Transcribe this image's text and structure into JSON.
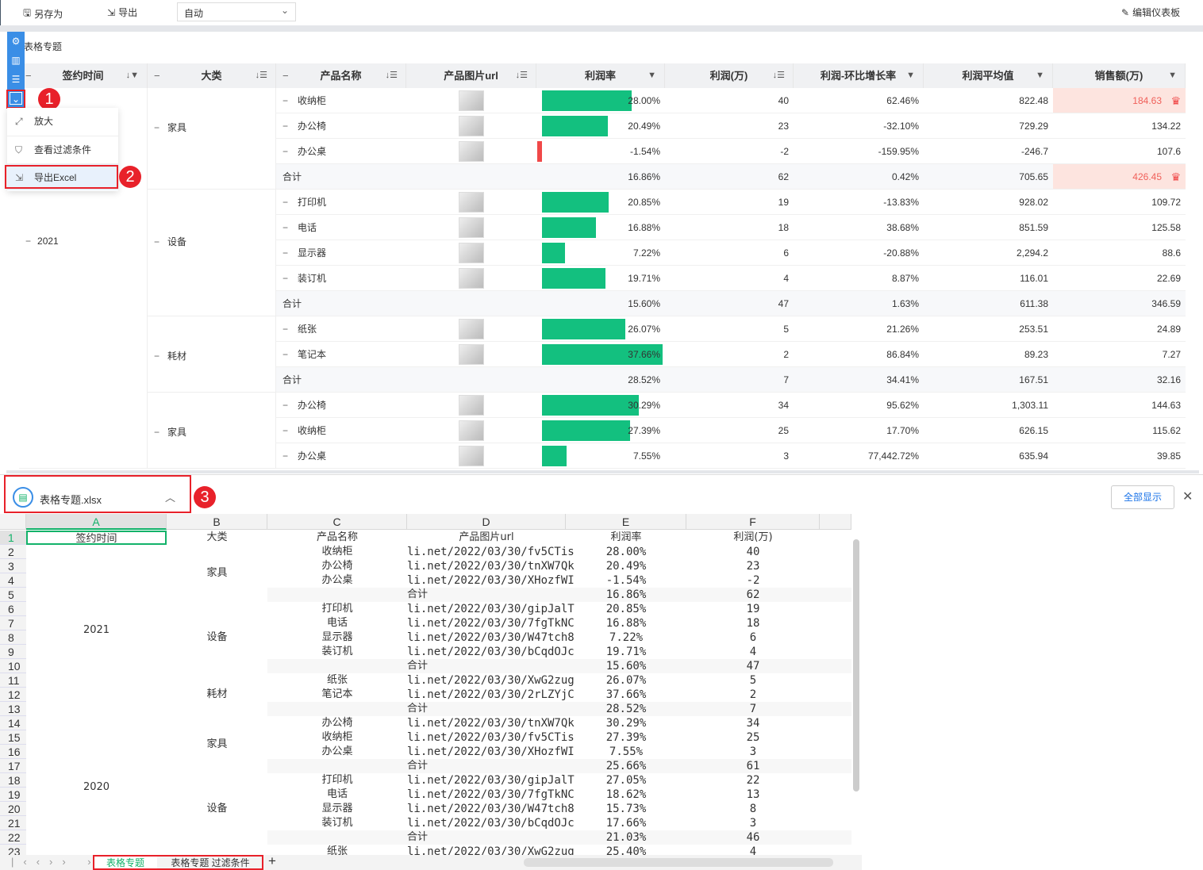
{
  "toolbar": {
    "save_as": "另存为",
    "export": "导出",
    "mode": "自动",
    "edit": "编辑仪表板"
  },
  "panel": {
    "title": "表格专题"
  },
  "menu": {
    "items": [
      "放大",
      "查看过滤条件",
      "导出Excel"
    ]
  },
  "badges": [
    "1",
    "2",
    "3"
  ],
  "columns": [
    "签约时间",
    "大类",
    "产品名称",
    "产品图片url",
    "利润率",
    "利润(万)",
    "利润-环比增长率",
    "利润平均值",
    "销售额(万)"
  ],
  "year": "2021",
  "rows": [
    {
      "cat": "家具",
      "name": "收纳柜",
      "rate": "28.00%",
      "rv": 28.0,
      "profit": "40",
      "mom": "62.46%",
      "avg": "822.48",
      "sales": "184.63",
      "crown": true
    },
    {
      "name": "办公椅",
      "rate": "20.49%",
      "rv": 20.49,
      "profit": "23",
      "mom": "-32.10%",
      "avg": "729.29",
      "sales": "134.22"
    },
    {
      "name": "办公桌",
      "rate": "-1.54%",
      "rv": -1.54,
      "profit": "-2",
      "mom": "-159.95%",
      "avg": "-246.7",
      "sales": "107.6"
    },
    {
      "total": "合计",
      "rate": "16.86%",
      "profit": "62",
      "mom": "0.42%",
      "avg": "705.65",
      "sales": "426.45",
      "crown": true
    },
    {
      "cat": "设备",
      "name": "打印机",
      "rate": "20.85%",
      "rv": 20.85,
      "profit": "19",
      "mom": "-13.83%",
      "avg": "928.02",
      "sales": "109.72"
    },
    {
      "name": "电话",
      "rate": "16.88%",
      "rv": 16.88,
      "profit": "18",
      "mom": "38.68%",
      "avg": "851.59",
      "sales": "125.58"
    },
    {
      "name": "显示器",
      "rate": "7.22%",
      "rv": 7.22,
      "profit": "6",
      "mom": "-20.88%",
      "avg": "2,294.2",
      "sales": "88.6"
    },
    {
      "name": "装订机",
      "rate": "19.71%",
      "rv": 19.71,
      "profit": "4",
      "mom": "8.87%",
      "avg": "116.01",
      "sales": "22.69"
    },
    {
      "total": "合计",
      "rate": "15.60%",
      "profit": "47",
      "mom": "1.63%",
      "avg": "611.38",
      "sales": "346.59"
    },
    {
      "cat": "耗材",
      "name": "纸张",
      "rate": "26.07%",
      "rv": 26.07,
      "profit": "5",
      "mom": "21.26%",
      "avg": "253.51",
      "sales": "24.89"
    },
    {
      "name": "笔记本",
      "rate": "37.66%",
      "rv": 37.66,
      "profit": "2",
      "mom": "86.84%",
      "avg": "89.23",
      "sales": "7.27"
    },
    {
      "total": "合计",
      "rate": "28.52%",
      "profit": "7",
      "mom": "34.41%",
      "avg": "167.51",
      "sales": "32.16"
    },
    {
      "cat": "家具",
      "name": "办公椅",
      "rate": "30.29%",
      "rv": 30.29,
      "profit": "34",
      "mom": "95.62%",
      "avg": "1,303.11",
      "sales": "144.63"
    },
    {
      "name": "收纳柜",
      "rate": "27.39%",
      "rv": 27.39,
      "profit": "25",
      "mom": "17.70%",
      "avg": "626.15",
      "sales": "115.62"
    },
    {
      "name": "办公桌",
      "rate": "7.55%",
      "rv": 7.55,
      "profit": "3",
      "mom": "77,442.72%",
      "avg": "635.94",
      "sales": "39.85"
    }
  ],
  "download": {
    "file": "表格专题.xlsx",
    "show_all": "全部显示"
  },
  "sheet": {
    "col_letters": [
      "A",
      "B",
      "C",
      "D",
      "E",
      "F"
    ],
    "header": [
      "签约时间",
      "大类",
      "产品名称",
      "产品图片url",
      "利润率",
      "利润(万)"
    ],
    "merged_a": [
      {
        "text": "2021",
        "from": 2,
        "to": 13
      },
      {
        "text": "2020",
        "from": 14,
        "to": 23
      }
    ],
    "merged_b": [
      {
        "text": "家具",
        "from": 2,
        "to": 5
      },
      {
        "text": "设备",
        "from": 6,
        "to": 10
      },
      {
        "text": "耗材",
        "from": 11,
        "to": 13
      },
      {
        "text": "家具",
        "from": 14,
        "to": 17
      },
      {
        "text": "设备",
        "from": 18,
        "to": 22
      }
    ],
    "rows": [
      [
        "收纳柜",
        "li.net/2022/03/30/fv5CTis",
        "28.00%",
        "40"
      ],
      [
        "办公椅",
        "li.net/2022/03/30/tnXW7Qk",
        "20.49%",
        "23"
      ],
      [
        "办公桌",
        "li.net/2022/03/30/XHozfWI",
        "-1.54%",
        "-2"
      ],
      [
        "",
        "合计",
        "16.86%",
        "62"
      ],
      [
        "打印机",
        "li.net/2022/03/30/gipJalT",
        "20.85%",
        "19"
      ],
      [
        "电话",
        "li.net/2022/03/30/7fgTkNC",
        "16.88%",
        "18"
      ],
      [
        "显示器",
        "li.net/2022/03/30/W47tch8",
        "7.22%",
        "6"
      ],
      [
        "装订机",
        "li.net/2022/03/30/bCqdOJc",
        "19.71%",
        "4"
      ],
      [
        "",
        "合计",
        "15.60%",
        "47"
      ],
      [
        "纸张",
        "li.net/2022/03/30/XwG2zug",
        "26.07%",
        "5"
      ],
      [
        "笔记本",
        "li.net/2022/03/30/2rLZYjC",
        "37.66%",
        "2"
      ],
      [
        "",
        "合计",
        "28.52%",
        "7"
      ],
      [
        "办公椅",
        "li.net/2022/03/30/tnXW7Qk",
        "30.29%",
        "34"
      ],
      [
        "收纳柜",
        "li.net/2022/03/30/fv5CTis",
        "27.39%",
        "25"
      ],
      [
        "办公桌",
        "li.net/2022/03/30/XHozfWI",
        "7.55%",
        "3"
      ],
      [
        "",
        "合计",
        "25.66%",
        "61"
      ],
      [
        "打印机",
        "li.net/2022/03/30/gipJalT",
        "27.05%",
        "22"
      ],
      [
        "电话",
        "li.net/2022/03/30/7fgTkNC",
        "18.62%",
        "13"
      ],
      [
        "显示器",
        "li.net/2022/03/30/W47tch8",
        "15.73%",
        "8"
      ],
      [
        "装订机",
        "li.net/2022/03/30/bCqdOJc",
        "17.66%",
        "3"
      ],
      [
        "",
        "合计",
        "21.03%",
        "46"
      ],
      [
        "纸张",
        "li.net/2022/03/30/XwG2zug",
        "25.40%",
        "4"
      ]
    ],
    "tabs": [
      "表格专题",
      "表格专题 过滤条件"
    ],
    "add_tab": "+"
  },
  "colors": {
    "accent": "#3a8ee6",
    "bar": "#13c07f",
    "neg": "#f04848",
    "highlight": "#fde4df",
    "badge": "#e8212a",
    "tab_active": "#13b26a"
  }
}
